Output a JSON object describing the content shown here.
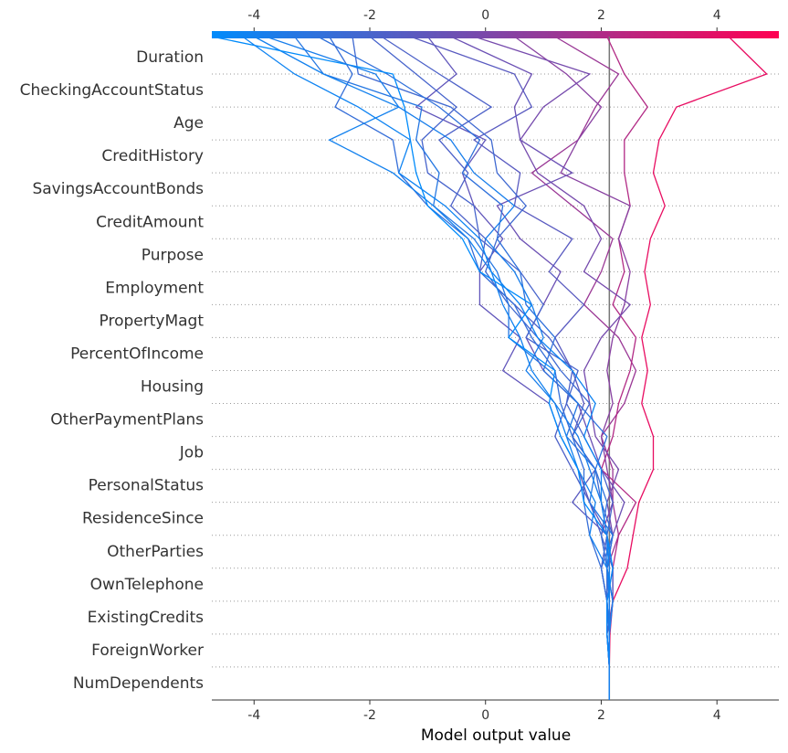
{
  "chart_data": {
    "type": "decision",
    "features": [
      "Duration",
      "CheckingAccountStatus",
      "Age",
      "CreditHistory",
      "SavingsAccountBonds",
      "CreditAmount",
      "Purpose",
      "Employment",
      "PropertyMagt",
      "PercentOfIncome",
      "Housing",
      "OtherPaymentPlans",
      "Job",
      "PersonalStatus",
      "ResidenceSince",
      "OtherParties",
      "OwnTelephone",
      "ExistingCredits",
      "ForeignWorker",
      "NumDependents"
    ],
    "xlabel": "Model output value",
    "xlim": [
      -4.73,
      5.07
    ],
    "xticks": [
      -4,
      -2,
      0,
      2,
      4
    ],
    "base_value": 2.14,
    "colormap": [
      "#008bfb",
      "#ff0052"
    ],
    "series": [
      {
        "values": [
          4.2,
          4.86,
          3.3,
          3.0,
          2.9,
          3.1,
          2.85,
          2.75,
          2.85,
          2.7,
          2.8,
          2.7,
          2.9,
          2.9,
          2.65,
          2.55,
          2.45,
          2.2,
          2.15,
          2.14
        ]
      },
      {
        "values": [
          1.2,
          2.3,
          1.9,
          1.6,
          0.8,
          1.5,
          2.2,
          2.0,
          1.7,
          2.3,
          2.6,
          2.4,
          2.0,
          2.2,
          2.2,
          2.3,
          2.1,
          2.1,
          2.14,
          2.14
        ]
      },
      {
        "values": [
          2.1,
          2.4,
          2.8,
          2.4,
          2.4,
          2.5,
          2.3,
          2.4,
          2.2,
          2.6,
          2.5,
          2.3,
          2.2,
          2.0,
          2.6,
          2.3,
          2.2,
          2.2,
          2.1,
          2.14
        ]
      },
      {
        "values": [
          0.5,
          1.4,
          2.0,
          1.6,
          1.3,
          2.5,
          2.3,
          2.5,
          2.4,
          2.2,
          2.1,
          2.2,
          2.0,
          2.1,
          2.2,
          2.0,
          2.1,
          2.2,
          2.14,
          2.14
        ]
      },
      {
        "values": [
          -0.2,
          1.8,
          1.0,
          0.6,
          0.9,
          1.7,
          2.0,
          1.7,
          2.5,
          2.0,
          1.7,
          1.8,
          1.9,
          2.3,
          2.1,
          2.2,
          2.1,
          2.14,
          2.14,
          2.14
        ]
      },
      {
        "values": [
          -0.6,
          0.8,
          0.5,
          0.6,
          1.5,
          0.2,
          0.6,
          1.3,
          1.0,
          0.7,
          1.0,
          1.6,
          1.8,
          2.0,
          2.4,
          2.2,
          2.1,
          2.2,
          2.1,
          2.14
        ]
      },
      {
        "values": [
          -1.0,
          -0.5,
          -1.2,
          0.0,
          -0.4,
          -0.2,
          0.3,
          -0.1,
          -0.1,
          0.6,
          0.3,
          1.1,
          1.3,
          1.6,
          1.8,
          2.1,
          2.0,
          2.1,
          2.14,
          2.14
        ]
      },
      {
        "values": [
          -1.3,
          0.5,
          0.8,
          -0.2,
          0.6,
          0.5,
          1.5,
          1.1,
          1.7,
          1.2,
          1.5,
          1.7,
          1.5,
          1.9,
          1.5,
          2.1,
          2.2,
          2.1,
          2.1,
          2.14
        ]
      },
      {
        "values": [
          -1.8,
          -0.8,
          0.1,
          -0.8,
          -0.3,
          -0.6,
          0.0,
          -0.1,
          0.5,
          1.1,
          1.5,
          1.4,
          1.2,
          1.5,
          1.8,
          2.0,
          2.2,
          2.2,
          2.14,
          2.14
        ]
      },
      {
        "values": [
          -2.0,
          -1.2,
          -0.5,
          -1.1,
          -1.0,
          -0.2,
          -0.1,
          0.6,
          1.0,
          0.7,
          1.6,
          1.4,
          1.7,
          2.0,
          2.2,
          2.1,
          2.0,
          2.1,
          2.1,
          2.14
        ]
      },
      {
        "values": [
          -2.3,
          -2.2,
          -0.6,
          0.1,
          0.2,
          0.7,
          0.2,
          0.0,
          0.4,
          0.9,
          1.3,
          1.8,
          1.5,
          1.9,
          2.0,
          2.2,
          2.0,
          2.1,
          2.14,
          2.14
        ]
      },
      {
        "values": [
          -2.9,
          -1.7,
          -0.8,
          -0.1,
          -0.4,
          0.3,
          0.2,
          0.6,
          0.7,
          1.2,
          1.0,
          1.6,
          2.1,
          1.9,
          2.1,
          2.0,
          2.1,
          2.1,
          2.14,
          2.14
        ]
      },
      {
        "values": [
          -3.3,
          -2.8,
          -1.1,
          -1.2,
          -0.8,
          -0.9,
          -0.2,
          0.2,
          0.4,
          0.4,
          1.1,
          1.6,
          1.4,
          1.9,
          1.8,
          2.2,
          2.1,
          2.14,
          2.14,
          2.14
        ]
      },
      {
        "values": [
          -2.7,
          -2.3,
          -2.6,
          -1.6,
          -1.5,
          -1.0,
          -0.3,
          -0.1,
          0.5,
          0.8,
          1.2,
          1.3,
          1.5,
          1.7,
          1.7,
          1.8,
          2.0,
          2.1,
          2.1,
          2.14
        ]
      },
      {
        "values": [
          -4.0,
          -2.8,
          -1.5,
          -2.7,
          -1.6,
          -0.9,
          -0.3,
          0.1,
          0.3,
          0.6,
          0.8,
          1.2,
          1.4,
          1.6,
          1.9,
          1.8,
          2.1,
          2.2,
          2.14,
          2.14
        ]
      },
      {
        "values": [
          -4.73,
          -1.6,
          -1.4,
          -1.3,
          -1.2,
          -1.0,
          -0.4,
          -0.1,
          0.8,
          0.4,
          1.2,
          1.1,
          1.3,
          1.6,
          1.7,
          2.1,
          2.2,
          2.1,
          2.1,
          2.14
        ]
      },
      {
        "values": [
          -4.2,
          -3.3,
          -2.2,
          -1.3,
          -1.5,
          -0.7,
          -0.1,
          0.1,
          0.6,
          0.9,
          1.5,
          1.9,
          1.7,
          2.0,
          2.0,
          2.1,
          2.14,
          2.14,
          2.14,
          2.14
        ]
      },
      {
        "values": [
          -3.8,
          -1.9,
          -1.5,
          -0.6,
          -0.2,
          0.5,
          0.0,
          0.5,
          0.8,
          1.0,
          0.7,
          1.2,
          1.6,
          1.8,
          2.0,
          2.1,
          2.1,
          2.14,
          2.14,
          2.14
        ]
      }
    ]
  }
}
